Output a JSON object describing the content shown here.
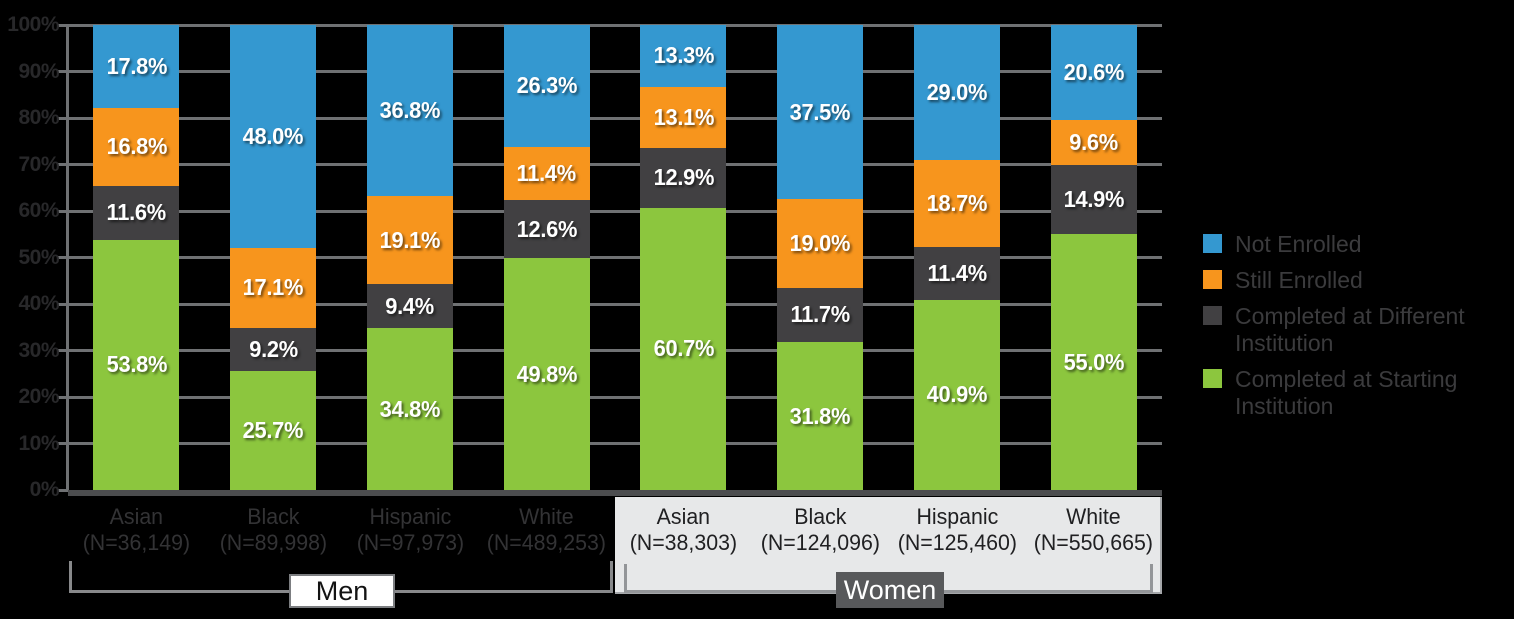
{
  "chart_data": {
    "type": "bar",
    "stacked": true,
    "value_unit": "%",
    "ylim": [
      0,
      100
    ],
    "ytick_step": 10,
    "yticks": [
      "0%",
      "10%",
      "20%",
      "30%",
      "40%",
      "50%",
      "60%",
      "70%",
      "80%",
      "90%",
      "100%"
    ],
    "grid": true,
    "legend_position": "right",
    "colors": {
      "background": "#000000",
      "gridline": "#6f7173",
      "women_panel": "#e7e8e9",
      "men_box_bg": "#ffffff",
      "women_box_bg": "#58595b"
    },
    "series": [
      {
        "key": "completed_starting",
        "label": "Completed at Starting Institution",
        "color": "#8cc63e"
      },
      {
        "key": "completed_different",
        "label": "Completed at Different Institution",
        "color": "#414042"
      },
      {
        "key": "still_enrolled",
        "label": "Still Enrolled",
        "color": "#f7951d"
      },
      {
        "key": "not_enrolled",
        "label": "Not Enrolled",
        "color": "#3498d0"
      }
    ],
    "legend_order": [
      "not_enrolled",
      "still_enrolled",
      "completed_different",
      "completed_starting"
    ],
    "groups": [
      {
        "label": "Men",
        "bars": [
          {
            "category": "Asian",
            "n": "(N=36,149)",
            "values": {
              "completed_starting": 53.8,
              "completed_different": 11.6,
              "still_enrolled": 16.8,
              "not_enrolled": 17.8
            }
          },
          {
            "category": "Black",
            "n": "(N=89,998)",
            "values": {
              "completed_starting": 25.7,
              "completed_different": 9.2,
              "still_enrolled": 17.1,
              "not_enrolled": 48.0
            }
          },
          {
            "category": "Hispanic",
            "n": "(N=97,973)",
            "values": {
              "completed_starting": 34.8,
              "completed_different": 9.4,
              "still_enrolled": 19.1,
              "not_enrolled": 36.8
            }
          },
          {
            "category": "White",
            "n": "(N=489,253)",
            "values": {
              "completed_starting": 49.8,
              "completed_different": 12.6,
              "still_enrolled": 11.4,
              "not_enrolled": 26.3
            }
          }
        ]
      },
      {
        "label": "Women",
        "bars": [
          {
            "category": "Asian",
            "n": "(N=38,303)",
            "values": {
              "completed_starting": 60.7,
              "completed_different": 12.9,
              "still_enrolled": 13.1,
              "not_enrolled": 13.3
            }
          },
          {
            "category": "Black",
            "n": "(N=124,096)",
            "values": {
              "completed_starting": 31.8,
              "completed_different": 11.7,
              "still_enrolled": 19.0,
              "not_enrolled": 37.5
            }
          },
          {
            "category": "Hispanic",
            "n": "(N=125,460)",
            "values": {
              "completed_starting": 40.9,
              "completed_different": 11.4,
              "still_enrolled": 18.7,
              "not_enrolled": 29.0
            }
          },
          {
            "category": "White",
            "n": "(N=550,665)",
            "values": {
              "completed_starting": 55.0,
              "completed_different": 14.9,
              "still_enrolled": 9.6,
              "not_enrolled": 20.6
            }
          }
        ]
      }
    ]
  }
}
